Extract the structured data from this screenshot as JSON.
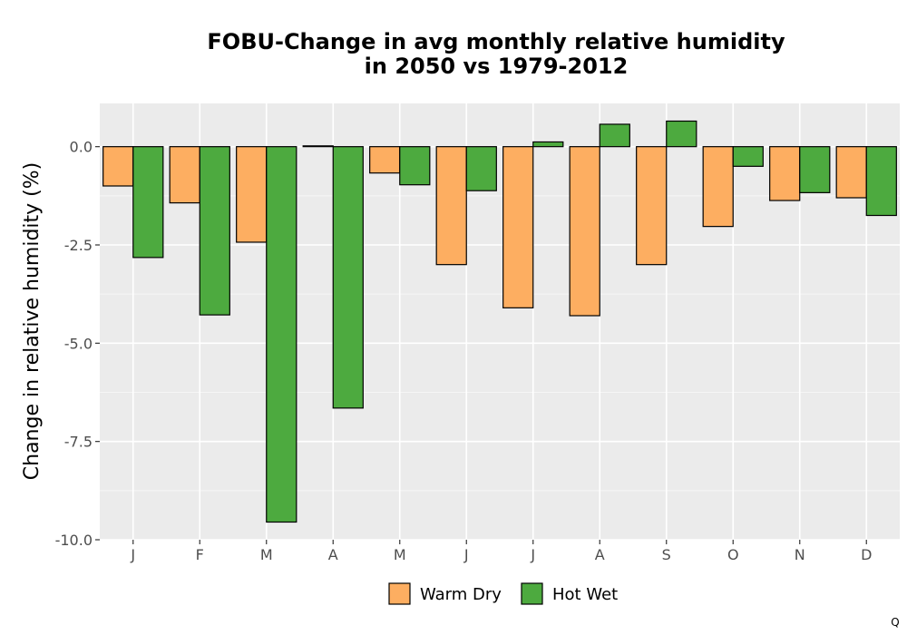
{
  "chart_data": {
    "type": "bar",
    "title_lines": [
      "FOBU-Change in avg monthly relative humidity",
      "in 2050 vs 1979-2012"
    ],
    "xlabel": "",
    "ylabel": "Change in relative humidity (%)",
    "categories": [
      "J",
      "F",
      "M",
      "A",
      "M",
      "J",
      "J",
      "A",
      "S",
      "O",
      "N",
      "D"
    ],
    "series": [
      {
        "name": "Warm Dry",
        "color": "#FDAE61",
        "values": [
          -1.0,
          -1.43,
          -2.43,
          0.02,
          -0.67,
          -3.0,
          -4.1,
          -4.3,
          -3.0,
          -2.03,
          -1.37,
          -1.3
        ]
      },
      {
        "name": "Hot Wet",
        "color": "#4DAA3F",
        "values": [
          -2.82,
          -4.28,
          -9.55,
          -6.65,
          -0.97,
          -1.12,
          0.12,
          0.57,
          0.65,
          -0.5,
          -1.17,
          -1.75
        ]
      }
    ],
    "ylim": [
      -10.0,
      1.1
    ],
    "yticks": [
      0.0,
      -2.5,
      -5.0,
      -7.5,
      -10.0
    ],
    "ytick_labels": [
      "0.0",
      "-2.5",
      "-5.0",
      "-7.5",
      "-10.0"
    ],
    "grid": true,
    "legend_position": "bottom"
  },
  "corner_mark": "Q"
}
